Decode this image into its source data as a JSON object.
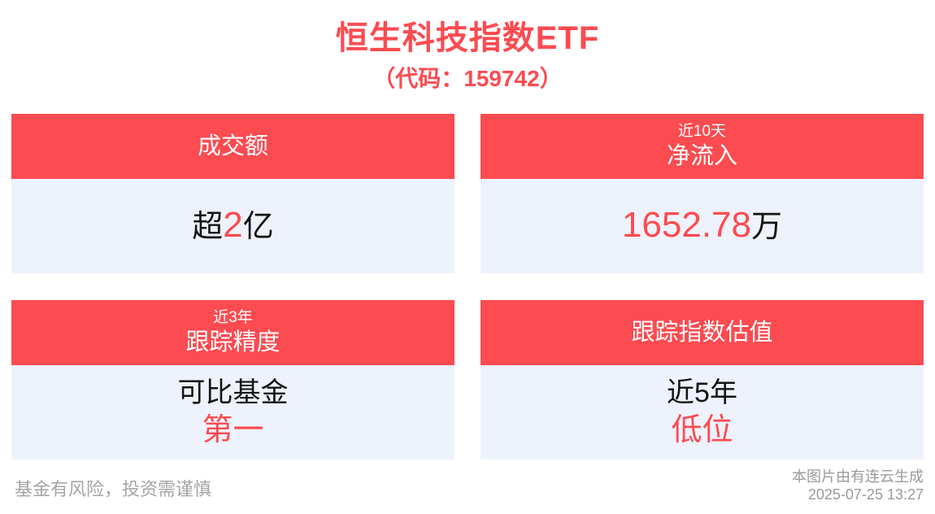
{
  "page": {
    "title": "恒生科技指数ETF",
    "subtitle": "（代码：159742）"
  },
  "colors": {
    "accent_red": "#fc4b51",
    "body_bg": "#eef2fc",
    "text_dark": "#141414",
    "text_gray": "#a5a5a5",
    "text_gray_dark": "#9b9b9b"
  },
  "cards": [
    {
      "header": {
        "small": "",
        "main": "成交额"
      },
      "body": {
        "pre": "超",
        "highlight": "2",
        "post": "亿"
      }
    },
    {
      "header": {
        "small": "近10天",
        "main": "净流入"
      },
      "body": {
        "pre": "",
        "highlight": "1652.78",
        "post": "万"
      }
    },
    {
      "header": {
        "small": "近3年",
        "main": "跟踪精度"
      },
      "body": {
        "line1": "可比基金",
        "line2": "第一"
      }
    },
    {
      "header": {
        "small": "",
        "main": "跟踪指数估值"
      },
      "body": {
        "line1": "近5年",
        "line2": "低位"
      }
    }
  ],
  "footer": {
    "disclaimer": "基金有风险，投资需谨慎",
    "credit": "本图片由有连云生成",
    "timestamp": "2025-07-25 13:27"
  }
}
